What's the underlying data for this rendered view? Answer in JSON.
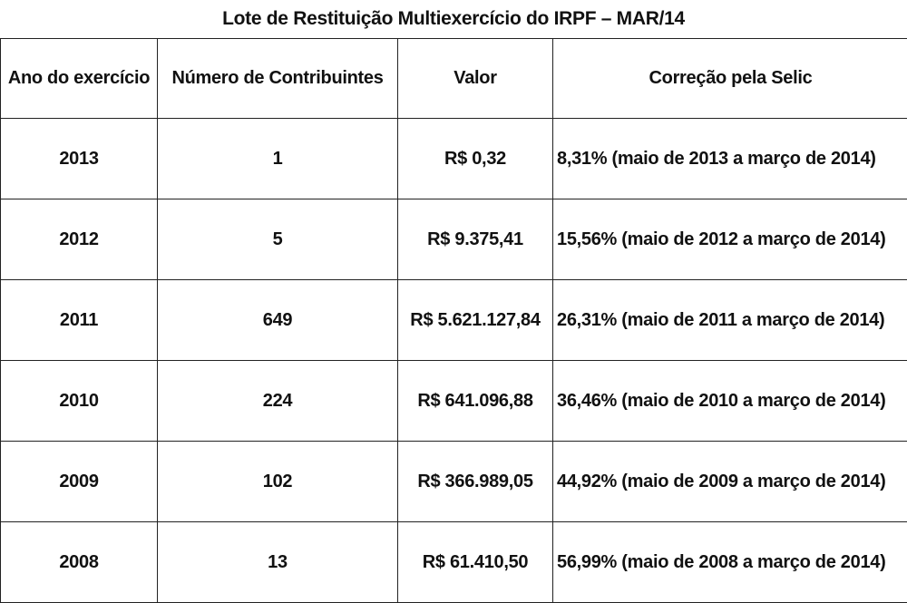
{
  "title": "Lote de Restituição Multiexercício do IRPF – MAR/14",
  "headers": {
    "ano": "Ano do exercício",
    "contribuintes": "Número de Contribuintes",
    "valor": "Valor",
    "correcao": "Correção pela Selic"
  },
  "rows": [
    {
      "ano": "2013",
      "contribuintes": "1",
      "valor": "R$ 0,32",
      "correcao": "8,31% (maio de 2013 a março de 2014)"
    },
    {
      "ano": "2012",
      "contribuintes": "5",
      "valor": "R$ 9.375,41",
      "correcao": "15,56% (maio de 2012 a março de 2014)"
    },
    {
      "ano": "2011",
      "contribuintes": "649",
      "valor": "R$ 5.621.127,84",
      "correcao": "26,31% (maio de 2011 a março de 2014)"
    },
    {
      "ano": "2010",
      "contribuintes": "224",
      "valor": "R$ 641.096,88",
      "correcao": "36,46% (maio de 2010 a março de 2014)"
    },
    {
      "ano": "2009",
      "contribuintes": "102",
      "valor": "R$ 366.989,05",
      "correcao": "44,92% (maio de 2009 a março de 2014)"
    },
    {
      "ano": "2008",
      "contribuintes": "13",
      "valor": "R$ 61.410,50",
      "correcao": "56,99% (maio de 2008 a março de 2014)"
    }
  ]
}
